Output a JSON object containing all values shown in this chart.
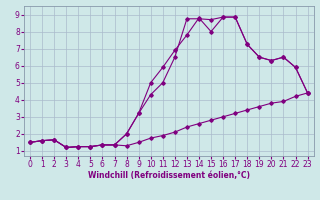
{
  "xlabel": "Windchill (Refroidissement éolien,°C)",
  "bg_color": "#cfe8e8",
  "line_color": "#800080",
  "grid_color": "#aabbcc",
  "spine_color": "#8899aa",
  "xlim": [
    -0.5,
    23.5
  ],
  "ylim": [
    0.7,
    9.5
  ],
  "xticks": [
    0,
    1,
    2,
    3,
    4,
    5,
    6,
    7,
    8,
    9,
    10,
    11,
    12,
    13,
    14,
    15,
    16,
    17,
    18,
    19,
    20,
    21,
    22,
    23
  ],
  "yticks": [
    1,
    2,
    3,
    4,
    5,
    6,
    7,
    8,
    9
  ],
  "line1_x": [
    0,
    1,
    2,
    3,
    4,
    5,
    6,
    7,
    8,
    9,
    10,
    11,
    12,
    13,
    14,
    15,
    16,
    17,
    18,
    19,
    20,
    21,
    22,
    23
  ],
  "line1_y": [
    1.5,
    1.6,
    1.65,
    1.2,
    1.25,
    1.25,
    1.35,
    1.35,
    1.3,
    1.5,
    1.75,
    1.9,
    2.1,
    2.4,
    2.6,
    2.8,
    3.0,
    3.2,
    3.4,
    3.6,
    3.8,
    3.9,
    4.2,
    4.4
  ],
  "line2_x": [
    0,
    1,
    2,
    3,
    4,
    5,
    6,
    7,
    8,
    9,
    10,
    11,
    12,
    13,
    14,
    15,
    16,
    17,
    18,
    19,
    20,
    21,
    22,
    23
  ],
  "line2_y": [
    1.5,
    1.6,
    1.65,
    1.2,
    1.25,
    1.25,
    1.35,
    1.35,
    2.0,
    3.2,
    5.0,
    5.9,
    6.9,
    7.8,
    8.8,
    8.0,
    8.85,
    8.85,
    7.25,
    6.5,
    6.3,
    6.5,
    5.9,
    4.4
  ],
  "line3_x": [
    0,
    1,
    2,
    3,
    4,
    5,
    6,
    7,
    8,
    9,
    10,
    11,
    12,
    13,
    14,
    15,
    16,
    17,
    18,
    19,
    20,
    21,
    22,
    23
  ],
  "line3_y": [
    1.5,
    1.6,
    1.65,
    1.2,
    1.25,
    1.25,
    1.35,
    1.35,
    2.0,
    3.2,
    4.3,
    5.0,
    6.5,
    8.75,
    8.75,
    8.7,
    8.85,
    8.85,
    7.25,
    6.5,
    6.3,
    6.5,
    5.9,
    4.4
  ],
  "tick_fontsize": 5.5,
  "xlabel_fontsize": 5.5
}
